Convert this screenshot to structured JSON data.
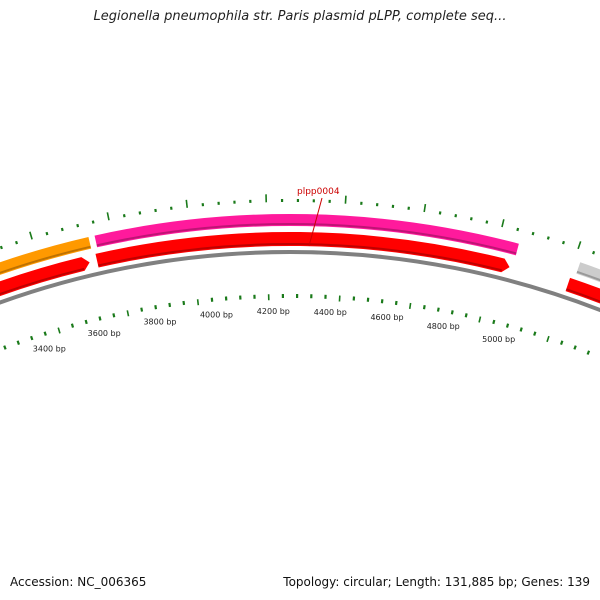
{
  "title": "Legionella pneumophila str. Paris plasmid pLPP, complete seq...",
  "footer": {
    "accession": "Accession: NC_006365",
    "summary": "Topology: circular; Length: 131,885 bp; Genes: 139"
  },
  "gene_label": "plpp0004",
  "bp_labels": [
    "3400 bp",
    "3600 bp",
    "3800 bp",
    "4000 bp",
    "4200 bp",
    "4400 bp",
    "4600 bp",
    "4800 bp",
    "5000 bp"
  ],
  "colors": {
    "backbone": "#808080",
    "tick": "#1a7a1a",
    "forward_gene": "#ff1a9c",
    "reverse_gene": "#ff0000",
    "other_gene": "#ff9900",
    "neutral_gene": "#cccccc",
    "label": "#cc0000"
  },
  "features": [
    {
      "name": "orange-feature",
      "color_key": "other_gene",
      "strand": "outer"
    },
    {
      "name": "red-feature-left",
      "color_key": "reverse_gene",
      "strand": "inner"
    },
    {
      "name": "plpp0004-feature",
      "color_key": "forward_gene",
      "strand": "outer"
    },
    {
      "name": "red-feature-main",
      "color_key": "reverse_gene",
      "strand": "inner"
    },
    {
      "name": "grey-feature",
      "color_key": "neutral_gene",
      "strand": "outer"
    },
    {
      "name": "red-feature-right",
      "color_key": "reverse_gene",
      "strand": "inner"
    }
  ]
}
